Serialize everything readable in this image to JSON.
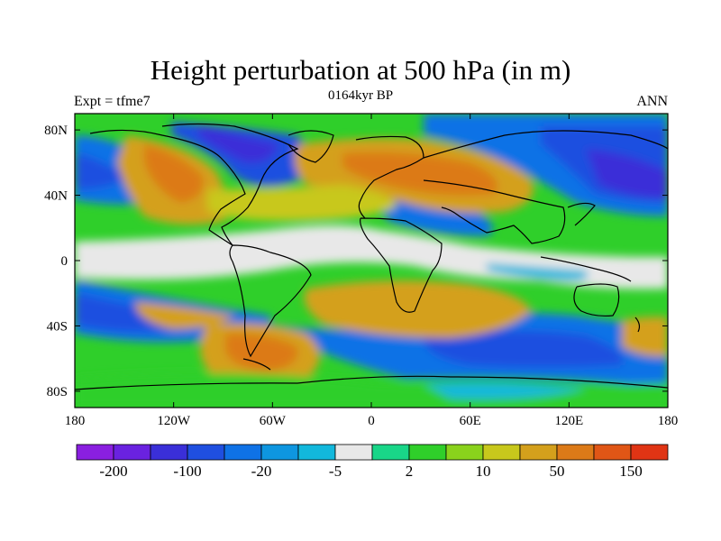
{
  "title": "Height perturbation at 500 hPa (in m)",
  "left_label": "Expt = tfme7",
  "center_label": "0164kyr BP",
  "right_label": "ANN",
  "map": {
    "projection": "cylindrical equidistant",
    "lon_range": [
      -180,
      180
    ],
    "lat_range": [
      -90,
      90
    ],
    "lon_ticks": [
      {
        "value": -180,
        "label": "180"
      },
      {
        "value": -120,
        "label": "120W"
      },
      {
        "value": -60,
        "label": "60W"
      },
      {
        "value": 0,
        "label": "0"
      },
      {
        "value": 60,
        "label": "60E"
      },
      {
        "value": 120,
        "label": "120E"
      },
      {
        "value": 180,
        "label": "180"
      }
    ],
    "lat_ticks": [
      {
        "value": 80,
        "label": "80N"
      },
      {
        "value": 40,
        "label": "40N"
      },
      {
        "value": 0,
        "label": "0"
      },
      {
        "value": -40,
        "label": "40S"
      },
      {
        "value": -80,
        "label": "80S"
      }
    ]
  },
  "colorbar": {
    "colors": [
      "#8a1fe0",
      "#6a22e0",
      "#3a2fd8",
      "#1f4fe0",
      "#0f72e6",
      "#0e96e0",
      "#12b8dc",
      "#e8e8e8",
      "#19d688",
      "#2fcf2a",
      "#8ad21c",
      "#c8c81c",
      "#d4a01c",
      "#dc7a18",
      "#e05616",
      "#e03414"
    ],
    "labels": [
      {
        "boundary": 1,
        "text": "-200"
      },
      {
        "boundary": 3,
        "text": "-100"
      },
      {
        "boundary": 5,
        "text": "-20"
      },
      {
        "boundary": 7,
        "text": "-5"
      },
      {
        "boundary": 9,
        "text": "2"
      },
      {
        "boundary": 11,
        "text": "10"
      },
      {
        "boundary": 13,
        "text": "50"
      },
      {
        "boundary": 15,
        "text": "150"
      }
    ]
  }
}
